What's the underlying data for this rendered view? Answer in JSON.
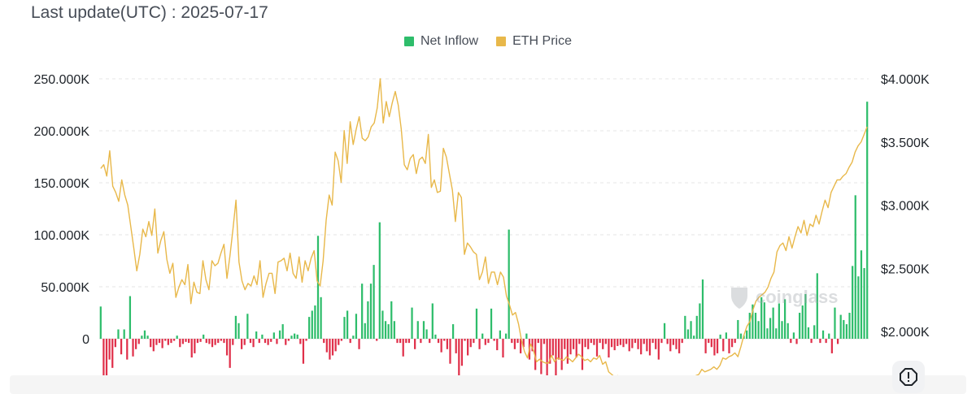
{
  "header": {
    "last_update": "Last update(UTC) : 2025-07-17"
  },
  "legend": [
    {
      "label": "Net Inflow",
      "color": "#2ebd6b"
    },
    {
      "label": "ETH Price",
      "color": "#e8b84a"
    }
  ],
  "watermark": "coinglass",
  "colors": {
    "positive": "#2ebd6b",
    "negative": "#e0304a",
    "price": "#e8b84a",
    "grid": "#e6e6e6"
  },
  "chart_data": {
    "type": "bar+line",
    "y_left": {
      "ticks": [
        "0",
        "50.000K",
        "100.000K",
        "150.000K",
        "200.000K",
        "250.000K"
      ],
      "range": [
        -45000,
        250000
      ]
    },
    "y_right": {
      "ticks": [
        "$2.000K",
        "$2.500K",
        "$3.000K",
        "$3.500K",
        "$4.000K"
      ],
      "range": [
        1620,
        4000
      ]
    },
    "series": [
      {
        "name": "Net Inflow",
        "type": "bar",
        "values": [
          31000,
          -36000,
          -42000,
          -20000,
          -28000,
          -8000,
          9000,
          -15000,
          9000,
          -20000,
          41000,
          -17000,
          -10000,
          -5000,
          3000,
          8000,
          3000,
          -8000,
          -12000,
          -6000,
          -4000,
          -9000,
          -2000,
          -6000,
          -4000,
          -2000,
          3000,
          -8000,
          -5000,
          -3000,
          -4000,
          -18000,
          -14000,
          -4000,
          -3000,
          4000,
          -4000,
          -5000,
          -8000,
          -6000,
          -4000,
          -2000,
          -4000,
          -16000,
          -28000,
          -6000,
          22000,
          15000,
          -10000,
          -6000,
          24000,
          -4000,
          -8000,
          7000,
          -4000,
          4000,
          -4000,
          -6000,
          -3000,
          6000,
          -5000,
          8000,
          14000,
          -6000,
          -2000,
          3000,
          5000,
          4000,
          -5000,
          -24000,
          -2000,
          21000,
          27000,
          32000,
          99000,
          40000,
          -4000,
          -13000,
          -20000,
          -16000,
          -12000,
          -6000,
          -2000,
          21000,
          27000,
          -4000,
          3000,
          24000,
          -10000,
          53000,
          15000,
          36000,
          53000,
          71000,
          -2000,
          112000,
          27000,
          17000,
          14000,
          36000,
          17000,
          -4000,
          -4000,
          -17000,
          -4000,
          -4000,
          30000,
          -10000,
          17000,
          -4000,
          17000,
          9000,
          -4000,
          34000,
          4000,
          -4000,
          -13000,
          -2000,
          -10000,
          -24000,
          14000,
          -14000,
          -42000,
          -26000,
          -2000,
          -16000,
          -8000,
          -4000,
          29000,
          -10000,
          5000,
          -6000,
          -4000,
          29000,
          -2000,
          -11000,
          8000,
          -18000,
          5000,
          105000,
          -4000,
          -10000,
          -4000,
          -14000,
          -8000,
          5000,
          -20000,
          -12000,
          -30000,
          -4000,
          -34000,
          -5000,
          -38000,
          -24000,
          -16000,
          -38000,
          -20000,
          -30000,
          -10000,
          -24000,
          -15000,
          -10000,
          -18000,
          -5000,
          -30000,
          -8000,
          -10000,
          -4000,
          -6000,
          -17000,
          -4000,
          -10000,
          -5000,
          -18000,
          -8000,
          -11000,
          -7000,
          -6000,
          -8000,
          -5000,
          -12000,
          -9000,
          -4000,
          -10000,
          -15000,
          -5000,
          -12000,
          -16000,
          -4000,
          -10000,
          -20000,
          -4000,
          15000,
          -5000,
          -12000,
          -6000,
          -10000,
          -14000,
          -4000,
          22000,
          9000,
          17000,
          3000,
          22000,
          34000,
          57000,
          -14000,
          -4000,
          -8000,
          -16000,
          -14000,
          4000,
          -12000,
          6000,
          -14000,
          -8000,
          -4000,
          18000,
          5000,
          3000,
          8000,
          25000,
          33000,
          25000,
          17000,
          40000,
          35000,
          10000,
          20000,
          30000,
          10000,
          34000,
          17000,
          38000,
          15000,
          -4000,
          6000,
          -5000,
          25000,
          32000,
          43000,
          11000,
          -4000,
          13000,
          63000,
          -4000,
          8000,
          -4000,
          5000,
          -14000,
          30000,
          -5000,
          23000,
          18000,
          14000,
          25000,
          70000,
          138000,
          60000,
          85000,
          68000,
          228000
        ]
      },
      {
        "name": "ETH Price",
        "type": "line",
        "values": [
          3290,
          3320,
          3230,
          3430,
          3150,
          3100,
          3030,
          3200,
          3080,
          3000,
          2830,
          2660,
          2480,
          2610,
          2810,
          2750,
          2870,
          2760,
          2970,
          2620,
          2720,
          2790,
          2570,
          2460,
          2540,
          2270,
          2350,
          2410,
          2370,
          2530,
          2220,
          2390,
          2310,
          2300,
          2560,
          2410,
          2330,
          2560,
          2520,
          2540,
          2620,
          2690,
          2420,
          2600,
          2810,
          3040,
          2550,
          2400,
          2330,
          2380,
          2360,
          2440,
          2370,
          2560,
          2270,
          2380,
          2460,
          2460,
          2300,
          2550,
          2560,
          2580,
          2480,
          2620,
          2460,
          2420,
          2590,
          2390,
          2560,
          2480,
          2580,
          2640,
          2400,
          2360,
          2560,
          2880,
          3080,
          3000,
          3420,
          3350,
          3180,
          3590,
          3330,
          3660,
          3480,
          3600,
          3700,
          3530,
          3510,
          3540,
          3620,
          3650,
          3770,
          4000,
          3650,
          3820,
          3700,
          3810,
          3900,
          3790,
          3600,
          3320,
          3280,
          3370,
          3400,
          3250,
          3360,
          3380,
          3330,
          3560,
          3140,
          3200,
          3100,
          3110,
          3450,
          3380,
          3250,
          3120,
          2870,
          3100,
          3060,
          2610,
          2700,
          2670,
          2630,
          2610,
          2410,
          2470,
          2590,
          2380,
          2470,
          2470,
          2370,
          2470,
          2430,
          2280,
          2210,
          2130,
          2150,
          2060,
          1930,
          1840,
          1790,
          1900,
          1850,
          1760,
          1780,
          1760,
          1750,
          1750,
          1810,
          1760,
          1790,
          1780,
          1770,
          1800,
          1780,
          1760,
          1790,
          1820,
          1800,
          1770,
          1780,
          1760,
          1790,
          1780,
          1810,
          1740,
          1760,
          1680,
          1660,
          1640,
          1650,
          1580,
          1560,
          1590,
          1620,
          1620,
          1610,
          1580,
          1600,
          1590,
          1560,
          1550,
          1560,
          1580,
          1600,
          1570,
          1560,
          1550,
          1540,
          1560,
          1580,
          1590,
          1560,
          1590,
          1600,
          1640,
          1650,
          1660,
          1700,
          1680,
          1690,
          1700,
          1720,
          1700,
          1730,
          1790,
          1780,
          1800,
          1810,
          1830,
          1800,
          1880,
          1970,
          2040,
          2080,
          2170,
          2240,
          2270,
          2290,
          2310,
          2350,
          2420,
          2470,
          2630,
          2680,
          2700,
          2640,
          2750,
          2660,
          2750,
          2830,
          2780,
          2880,
          2760,
          2850,
          2830,
          2920,
          2850,
          2950,
          3040,
          2980,
          3100,
          3150,
          3200,
          3200,
          3230,
          3250,
          3300,
          3340,
          3420,
          3470,
          3500,
          3560,
          3620
        ]
      }
    ]
  }
}
